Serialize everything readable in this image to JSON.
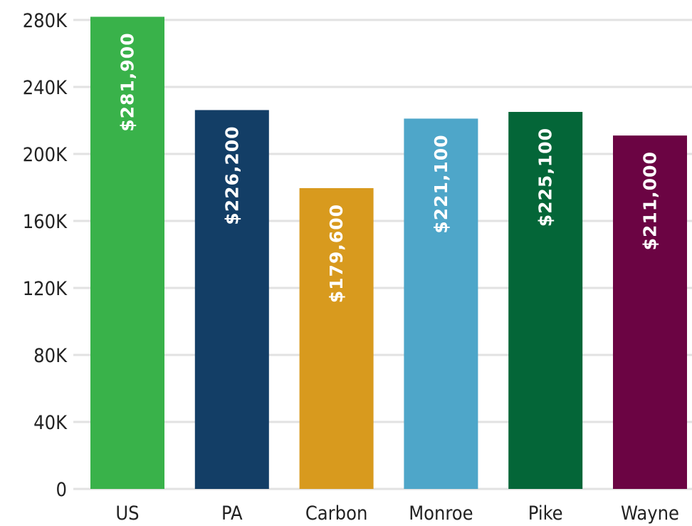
{
  "chart_data": {
    "type": "bar",
    "title": "",
    "xlabel": "",
    "ylabel": "",
    "ylim": [
      0,
      280000
    ],
    "yticks": [
      0,
      40000,
      80000,
      120000,
      160000,
      200000,
      240000,
      280000
    ],
    "ytick_labels": [
      "0",
      "40K",
      "80K",
      "120K",
      "160K",
      "200K",
      "240K",
      "280K"
    ],
    "categories": [
      "US",
      "PA",
      "Carbon",
      "Monroe",
      "Pike",
      "Wayne"
    ],
    "values": [
      281900,
      226200,
      179600,
      221100,
      225100,
      211000
    ],
    "data_labels": [
      "$281,900",
      "$226,200",
      "$179,600",
      "$221,100",
      "$225,100",
      "$211,000"
    ],
    "colors": [
      "#39b24a",
      "#133e66",
      "#d89a1e",
      "#4ea6c9",
      "#046638",
      "#6b0443"
    ],
    "label_colors": [
      "#ffffff",
      "#ffffff",
      "#ffffff",
      "#ffffff",
      "#ffffff",
      "#ffffff"
    ],
    "grid": true,
    "legend": "none"
  }
}
